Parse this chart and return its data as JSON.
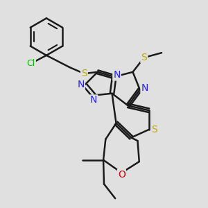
{
  "background_color": "#e0e0e0",
  "bond_color": "#1a1a1a",
  "bond_width": 1.8,
  "figsize": [
    3.0,
    3.0
  ],
  "dpi": 100,
  "xlim": [
    -2.5,
    3.5
  ],
  "ylim": [
    -3.5,
    3.0
  ]
}
